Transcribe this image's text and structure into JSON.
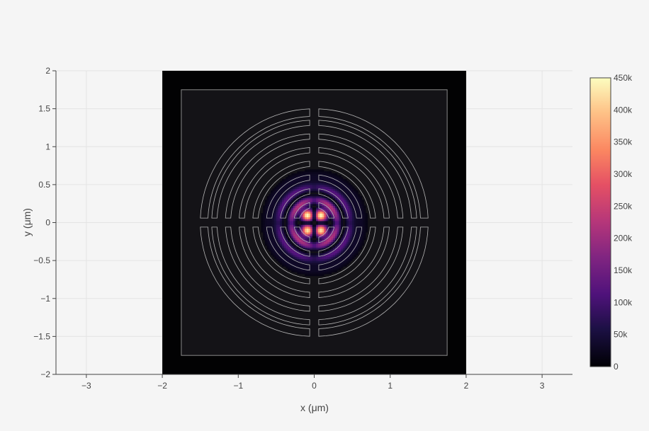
{
  "chart_data": {
    "type": "heatmap",
    "title": "",
    "xlabel": "x (μm)",
    "ylabel": "y (μm)",
    "xlim": [
      -3.4,
      3.4
    ],
    "ylim": [
      -2,
      2
    ],
    "grid": true,
    "x_ticks": [
      -3,
      -2,
      -1,
      0,
      1,
      2,
      3
    ],
    "x_tick_labels": [
      "−3",
      "−2",
      "−1",
      "0",
      "1",
      "2",
      "3"
    ],
    "y_ticks": [
      2,
      1.5,
      1,
      0.5,
      0,
      -0.5,
      -1,
      -1.5,
      -2
    ],
    "y_tick_labels": [
      "2",
      "1.5",
      "1",
      "0.5",
      "0",
      "−0.5",
      "−1",
      "−1.5",
      "−2"
    ],
    "heatmap_extent": {
      "x": [
        -2,
        2
      ],
      "y": [
        -2,
        2
      ]
    },
    "colorscale": "magma",
    "colorbar": {
      "min": 0,
      "max": 450000,
      "ticks": [
        0,
        50000,
        100000,
        150000,
        200000,
        250000,
        300000,
        350000,
        400000,
        450000
      ],
      "tick_labels": [
        "0",
        "50k",
        "100k",
        "150k",
        "200k",
        "250k",
        "300k",
        "350k",
        "400k",
        "450k"
      ]
    },
    "structure_outline": {
      "box": {
        "x": [
          -1.75,
          1.75
        ],
        "y": [
          -1.75,
          1.75
        ]
      },
      "rings_inner_radius": [
        0.2,
        0.38,
        0.56,
        0.74,
        0.92,
        1.1,
        1.28
      ],
      "rings_outer_radius": [
        0.27,
        0.45,
        0.63,
        0.81,
        0.99,
        1.17,
        1.35
      ],
      "gap_half_width": 0.06,
      "outer_arc_radius": [
        1.4,
        1.5
      ],
      "color": "#b4b4b4"
    },
    "field_peak": 450000,
    "field_lobes": [
      {
        "x": -0.09,
        "y": 0.1,
        "value": 450000
      },
      {
        "x": 0.09,
        "y": 0.1,
        "value": 450000
      },
      {
        "x": -0.09,
        "y": -0.1,
        "value": 430000
      },
      {
        "x": 0.09,
        "y": -0.1,
        "value": 430000
      }
    ]
  }
}
